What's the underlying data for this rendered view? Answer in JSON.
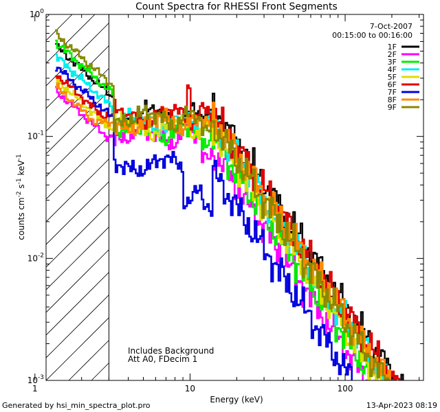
{
  "chart_data": {
    "type": "line",
    "title": "Count Spectra for RHESSI Front Segments",
    "xlabel": "Energy (keV)",
    "ylabel": "counts cm",
    "ylabel_sup1": "-2",
    "ylabel_mid": " s",
    "ylabel_sup2": "-1",
    "ylabel_end": " keV",
    "ylabel_sup3": "-1",
    "x_scale": "log",
    "y_scale": "log",
    "xlim": [
      1.18,
      320
    ],
    "ylim": [
      0.001,
      1.0
    ],
    "x_ticks": [
      {
        "value": 1,
        "label": "1"
      },
      {
        "value": 10,
        "label": "10"
      },
      {
        "value": 100,
        "label": "100"
      }
    ],
    "y_ticks": [
      {
        "value": 1.0,
        "base": "10",
        "exp": "0"
      },
      {
        "value": 0.1,
        "base": "10",
        "exp": "-1"
      },
      {
        "value": 0.01,
        "base": "10",
        "exp": "-2"
      },
      {
        "value": 0.001,
        "base": "10",
        "exp": "-3"
      }
    ],
    "grid": false,
    "excluded_region_max_energy": 3.0,
    "date": "7-Oct-2007",
    "time_range": "00:15:00 to 00:16:00",
    "legend_position": "top-right",
    "annotations": [
      "Includes Background",
      "Att A0, FDecim 1"
    ],
    "series": [
      {
        "name": "1F",
        "color": "#000000",
        "amp": 0.56,
        "knee": 0.15,
        "shift": 0.1,
        "phase": 0.3
      },
      {
        "name": "2F",
        "color": "#ff00ff",
        "amp": 0.24,
        "knee": 0.1,
        "shift": -0.35,
        "phase": 1.1
      },
      {
        "name": "3F",
        "color": "#00ee00",
        "amp": 0.6,
        "knee": 0.11,
        "shift": -0.18,
        "phase": 2.0
      },
      {
        "name": "4F",
        "color": "#00eeee",
        "amp": 0.46,
        "knee": 0.13,
        "shift": -0.05,
        "phase": 2.7
      },
      {
        "name": "5F",
        "color": "#dddd00",
        "amp": 0.3,
        "knee": 0.12,
        "shift": -0.1,
        "phase": 3.5
      },
      {
        "name": "6F",
        "color": "#dd0000",
        "amp": 0.33,
        "knee": 0.15,
        "shift": 0.0,
        "phase": 4.2
      },
      {
        "name": "7F",
        "color": "#0000dd",
        "amp": 0.38,
        "knee": 0.06,
        "shift": -0.22,
        "phase": 5.0
      },
      {
        "name": "8F",
        "color": "#ff8800",
        "amp": 0.26,
        "knee": 0.13,
        "shift": 0.05,
        "phase": 5.8
      },
      {
        "name": "9F",
        "color": "#888800",
        "amp": 0.7,
        "knee": 0.14,
        "shift": -0.15,
        "phase": 0.8
      }
    ]
  },
  "footer": {
    "left": "Generated by hsi_min_spectra_plot.pro",
    "right": "13-Apr-2023 08:19"
  }
}
